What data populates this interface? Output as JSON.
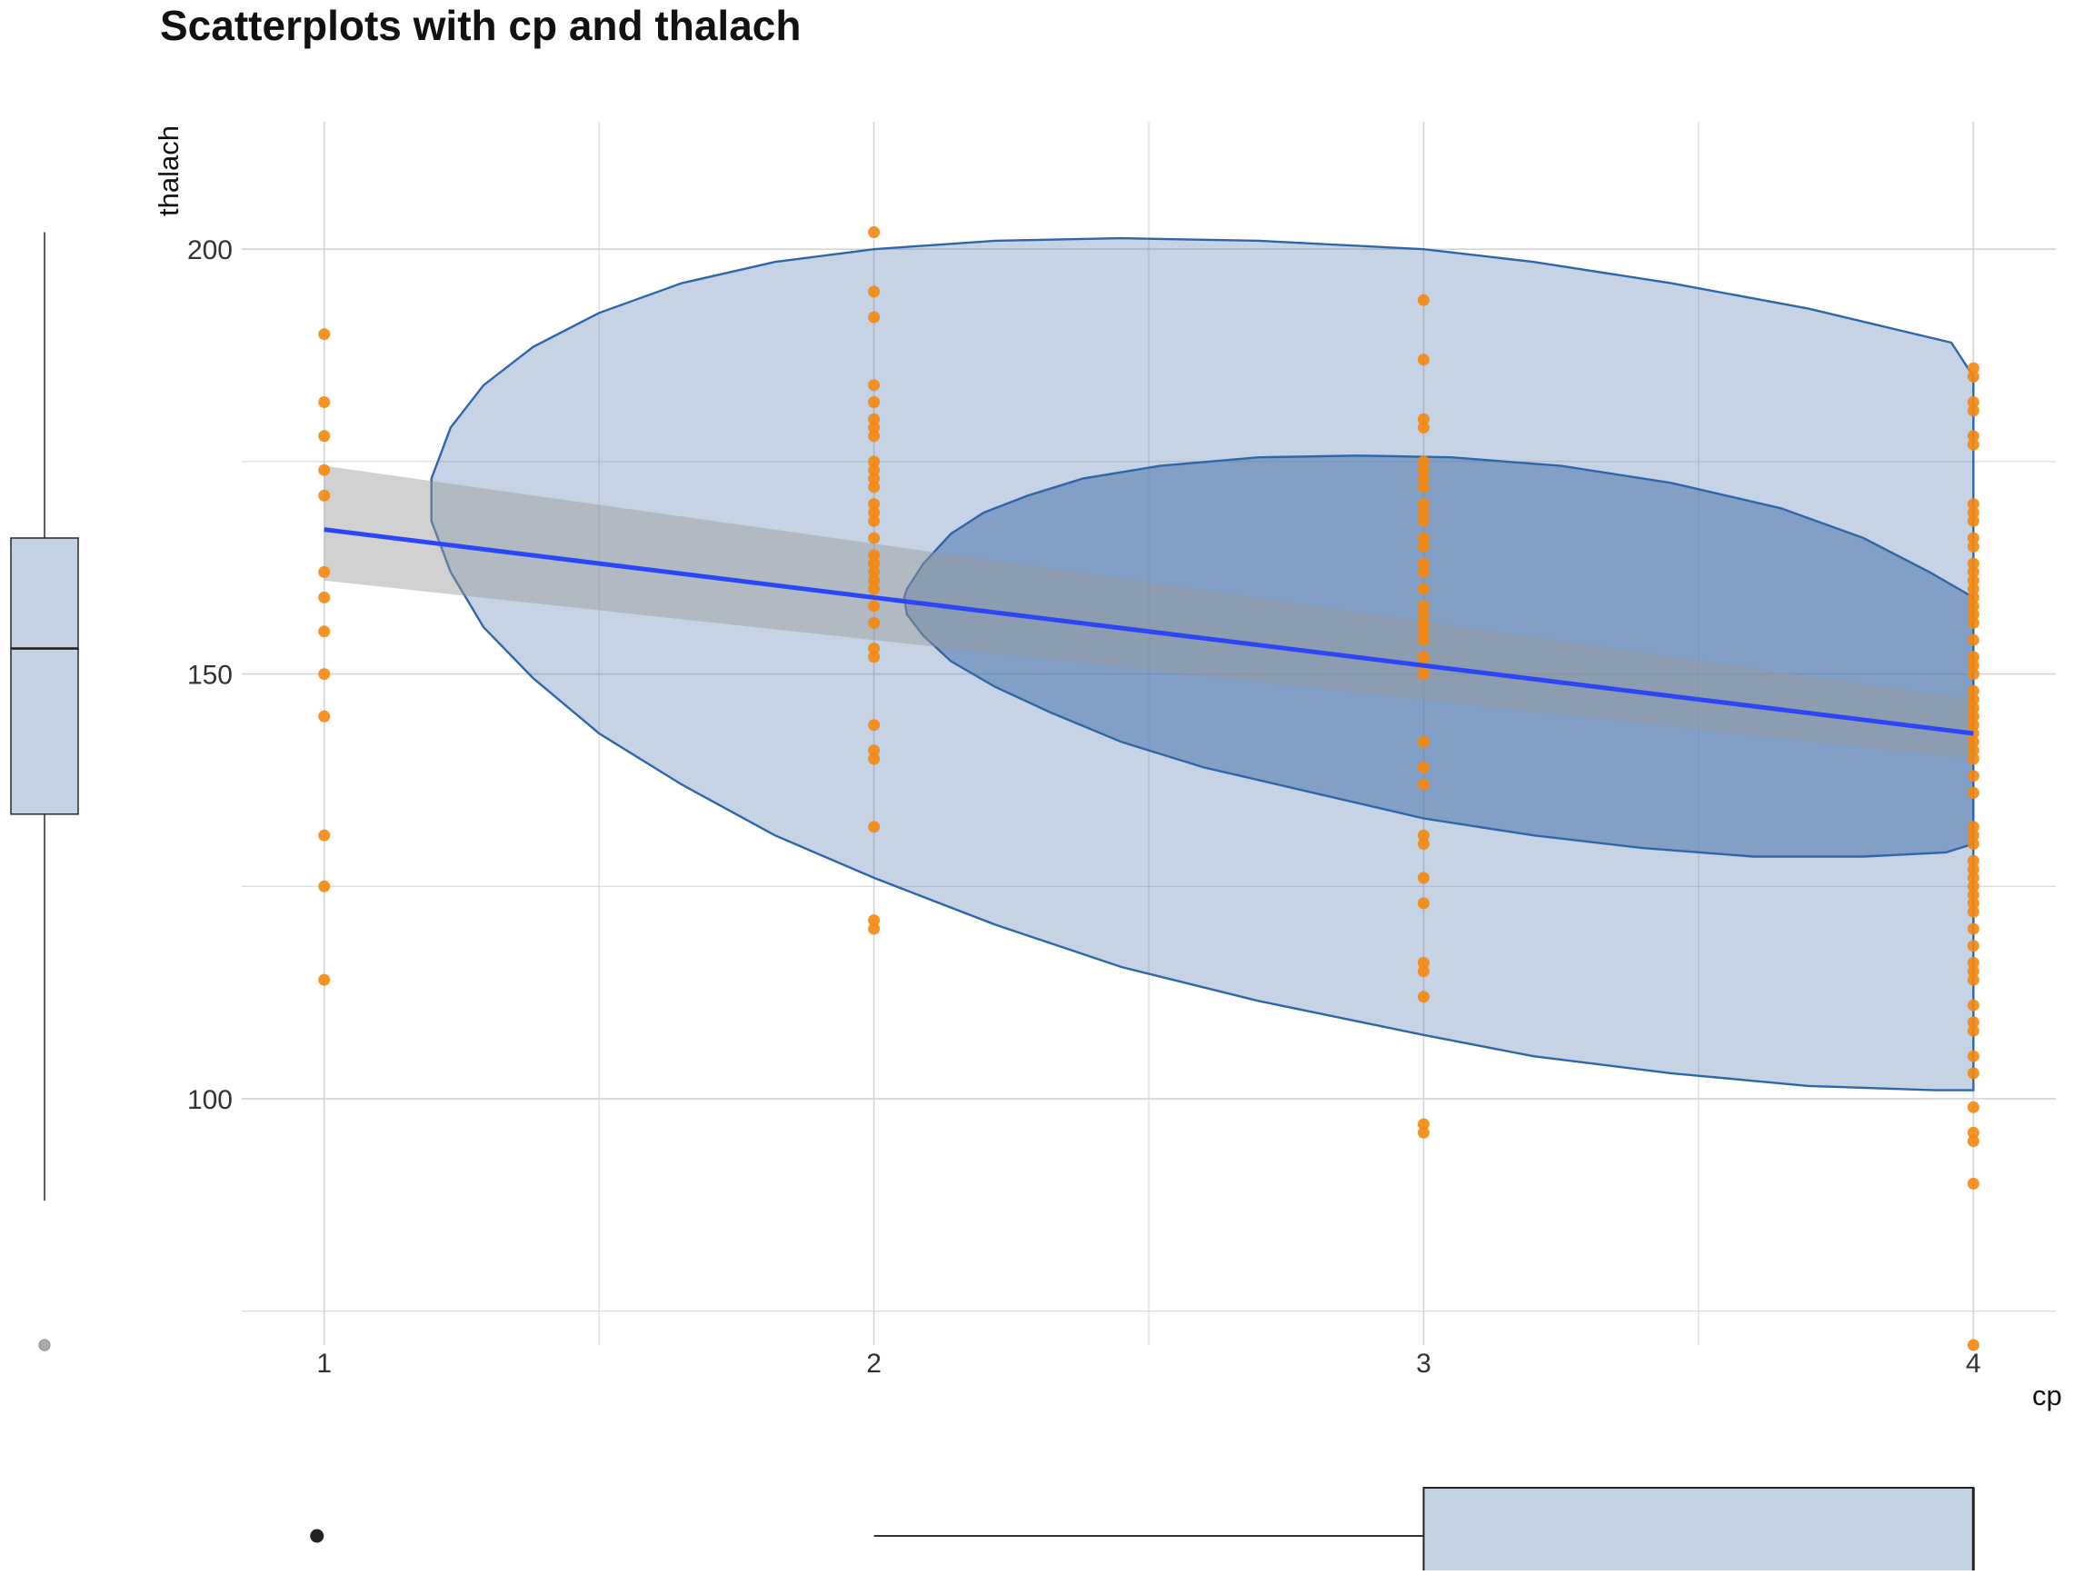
{
  "chart_data": {
    "type": "scatter",
    "title": "Scatterplots with cp and thalach",
    "xlabel": "cp",
    "ylabel": "thalach",
    "xlim": [
      0.85,
      4.15
    ],
    "ylim": [
      71,
      215
    ],
    "x_ticks": [
      1,
      2,
      3,
      4
    ],
    "x_tick_labels": [
      "1",
      "2",
      "3",
      "4"
    ],
    "y_ticks": [
      100,
      150,
      200
    ],
    "y_tick_labels": [
      "100",
      "150",
      "200"
    ],
    "grid": true,
    "colors": {
      "points": "#f5870e",
      "fit_line": "#2b47f5",
      "ci_band": "#999999",
      "density_fill": "#4b76ad",
      "density_stroke": "#2e66a8",
      "boxplot_fill": "#c4d3e4",
      "grid": "#d4d4d4"
    },
    "series": [
      {
        "type": "scatter",
        "points": [
          {
            "x": 1,
            "y": 190
          },
          {
            "x": 1,
            "y": 182
          },
          {
            "x": 1,
            "y": 178
          },
          {
            "x": 1,
            "y": 174
          },
          {
            "x": 1,
            "y": 171
          },
          {
            "x": 1,
            "y": 162
          },
          {
            "x": 1,
            "y": 159
          },
          {
            "x": 1,
            "y": 155
          },
          {
            "x": 1,
            "y": 150
          },
          {
            "x": 1,
            "y": 145
          },
          {
            "x": 1,
            "y": 131
          },
          {
            "x": 1,
            "y": 125
          },
          {
            "x": 1,
            "y": 114
          },
          {
            "x": 2,
            "y": 202
          },
          {
            "x": 2,
            "y": 195
          },
          {
            "x": 2,
            "y": 192
          },
          {
            "x": 2,
            "y": 184
          },
          {
            "x": 2,
            "y": 182
          },
          {
            "x": 2,
            "y": 180
          },
          {
            "x": 2,
            "y": 179
          },
          {
            "x": 2,
            "y": 178
          },
          {
            "x": 2,
            "y": 175
          },
          {
            "x": 2,
            "y": 174
          },
          {
            "x": 2,
            "y": 173
          },
          {
            "x": 2,
            "y": 172
          },
          {
            "x": 2,
            "y": 170
          },
          {
            "x": 2,
            "y": 169
          },
          {
            "x": 2,
            "y": 168
          },
          {
            "x": 2,
            "y": 166
          },
          {
            "x": 2,
            "y": 164
          },
          {
            "x": 2,
            "y": 163
          },
          {
            "x": 2,
            "y": 162
          },
          {
            "x": 2,
            "y": 161
          },
          {
            "x": 2,
            "y": 160
          },
          {
            "x": 2,
            "y": 158
          },
          {
            "x": 2,
            "y": 156
          },
          {
            "x": 2,
            "y": 153
          },
          {
            "x": 2,
            "y": 152
          },
          {
            "x": 2,
            "y": 144
          },
          {
            "x": 2,
            "y": 141
          },
          {
            "x": 2,
            "y": 140
          },
          {
            "x": 2,
            "y": 132
          },
          {
            "x": 2,
            "y": 121
          },
          {
            "x": 2,
            "y": 120
          },
          {
            "x": 3,
            "y": 194
          },
          {
            "x": 3,
            "y": 187
          },
          {
            "x": 3,
            "y": 180
          },
          {
            "x": 3,
            "y": 179
          },
          {
            "x": 3,
            "y": 175
          },
          {
            "x": 3,
            "y": 174
          },
          {
            "x": 3,
            "y": 173
          },
          {
            "x": 3,
            "y": 172
          },
          {
            "x": 3,
            "y": 170
          },
          {
            "x": 3,
            "y": 169
          },
          {
            "x": 3,
            "y": 168
          },
          {
            "x": 3,
            "y": 166
          },
          {
            "x": 3,
            "y": 165
          },
          {
            "x": 3,
            "y": 163
          },
          {
            "x": 3,
            "y": 162
          },
          {
            "x": 3,
            "y": 160
          },
          {
            "x": 3,
            "y": 158
          },
          {
            "x": 3,
            "y": 157
          },
          {
            "x": 3,
            "y": 156
          },
          {
            "x": 3,
            "y": 155
          },
          {
            "x": 3,
            "y": 154
          },
          {
            "x": 3,
            "y": 152
          },
          {
            "x": 3,
            "y": 151
          },
          {
            "x": 3,
            "y": 150
          },
          {
            "x": 3,
            "y": 142
          },
          {
            "x": 3,
            "y": 139
          },
          {
            "x": 3,
            "y": 137
          },
          {
            "x": 3,
            "y": 131
          },
          {
            "x": 3,
            "y": 130
          },
          {
            "x": 3,
            "y": 126
          },
          {
            "x": 3,
            "y": 123
          },
          {
            "x": 3,
            "y": 116
          },
          {
            "x": 3,
            "y": 115
          },
          {
            "x": 3,
            "y": 112
          },
          {
            "x": 3,
            "y": 97
          },
          {
            "x": 3,
            "y": 96
          },
          {
            "x": 4,
            "y": 186
          },
          {
            "x": 4,
            "y": 185
          },
          {
            "x": 4,
            "y": 182
          },
          {
            "x": 4,
            "y": 181
          },
          {
            "x": 4,
            "y": 178
          },
          {
            "x": 4,
            "y": 177
          },
          {
            "x": 4,
            "y": 170
          },
          {
            "x": 4,
            "y": 169
          },
          {
            "x": 4,
            "y": 168
          },
          {
            "x": 4,
            "y": 166
          },
          {
            "x": 4,
            "y": 165
          },
          {
            "x": 4,
            "y": 163
          },
          {
            "x": 4,
            "y": 162
          },
          {
            "x": 4,
            "y": 161
          },
          {
            "x": 4,
            "y": 160
          },
          {
            "x": 4,
            "y": 159
          },
          {
            "x": 4,
            "y": 158
          },
          {
            "x": 4,
            "y": 157
          },
          {
            "x": 4,
            "y": 156
          },
          {
            "x": 4,
            "y": 154
          },
          {
            "x": 4,
            "y": 152
          },
          {
            "x": 4,
            "y": 151
          },
          {
            "x": 4,
            "y": 150
          },
          {
            "x": 4,
            "y": 148
          },
          {
            "x": 4,
            "y": 147
          },
          {
            "x": 4,
            "y": 146
          },
          {
            "x": 4,
            "y": 145
          },
          {
            "x": 4,
            "y": 144
          },
          {
            "x": 4,
            "y": 143
          },
          {
            "x": 4,
            "y": 142
          },
          {
            "x": 4,
            "y": 141
          },
          {
            "x": 4,
            "y": 140
          },
          {
            "x": 4,
            "y": 138
          },
          {
            "x": 4,
            "y": 136
          },
          {
            "x": 4,
            "y": 132
          },
          {
            "x": 4,
            "y": 131
          },
          {
            "x": 4,
            "y": 130
          },
          {
            "x": 4,
            "y": 128
          },
          {
            "x": 4,
            "y": 127
          },
          {
            "x": 4,
            "y": 126
          },
          {
            "x": 4,
            "y": 125
          },
          {
            "x": 4,
            "y": 124
          },
          {
            "x": 4,
            "y": 123
          },
          {
            "x": 4,
            "y": 122
          },
          {
            "x": 4,
            "y": 120
          },
          {
            "x": 4,
            "y": 118
          },
          {
            "x": 4,
            "y": 116
          },
          {
            "x": 4,
            "y": 115
          },
          {
            "x": 4,
            "y": 114
          },
          {
            "x": 4,
            "y": 111
          },
          {
            "x": 4,
            "y": 109
          },
          {
            "x": 4,
            "y": 108
          },
          {
            "x": 4,
            "y": 105
          },
          {
            "x": 4,
            "y": 103
          },
          {
            "x": 4,
            "y": 99
          },
          {
            "x": 4,
            "y": 96
          },
          {
            "x": 4,
            "y": 95
          },
          {
            "x": 4,
            "y": 90
          },
          {
            "x": 4,
            "y": 71
          }
        ]
      },
      {
        "type": "line",
        "points": [
          {
            "x": 1,
            "y": 167
          },
          {
            "x": 4,
            "y": 143
          }
        ],
        "ci_band": {
          "x": [
            1,
            4
          ],
          "upper": [
            174.5,
            147
          ],
          "lower": [
            161,
            140
          ]
        }
      },
      {
        "type": "density_contour",
        "levels": [
          {
            "polygon": [
              [
                4.0,
                185
              ],
              [
                3.96,
                189
              ],
              [
                3.7,
                193
              ],
              [
                3.45,
                196
              ],
              [
                3.2,
                198.5
              ],
              [
                3.0,
                200
              ],
              [
                2.7,
                201
              ],
              [
                2.45,
                201.3
              ],
              [
                2.22,
                201
              ],
              [
                2.0,
                200
              ],
              [
                1.82,
                198.5
              ],
              [
                1.65,
                196
              ],
              [
                1.5,
                192.5
              ],
              [
                1.38,
                188.5
              ],
              [
                1.29,
                184
              ],
              [
                1.23,
                179
              ],
              [
                1.195,
                173
              ],
              [
                1.195,
                168
              ],
              [
                1.23,
                162
              ],
              [
                1.29,
                155.5
              ],
              [
                1.38,
                149.5
              ],
              [
                1.5,
                143
              ],
              [
                1.65,
                137
              ],
              [
                1.82,
                131
              ],
              [
                2.0,
                126
              ],
              [
                2.22,
                120.5
              ],
              [
                2.45,
                115.5
              ],
              [
                2.7,
                111.5
              ],
              [
                3.0,
                107.5
              ],
              [
                3.2,
                105
              ],
              [
                3.45,
                103
              ],
              [
                3.7,
                101.5
              ],
              [
                3.93,
                101
              ],
              [
                4.0,
                101
              ]
            ]
          },
          {
            "polygon": [
              [
                4.0,
                159
              ],
              [
                3.92,
                162
              ],
              [
                3.8,
                166
              ],
              [
                3.65,
                169.5
              ],
              [
                3.45,
                172.5
              ],
              [
                3.25,
                174.5
              ],
              [
                3.05,
                175.5
              ],
              [
                2.88,
                175.7
              ],
              [
                2.7,
                175.5
              ],
              [
                2.52,
                174.5
              ],
              [
                2.38,
                173
              ],
              [
                2.28,
                171
              ],
              [
                2.2,
                169
              ],
              [
                2.14,
                166.5
              ],
              [
                2.09,
                163
              ],
              [
                2.06,
                160
              ],
              [
                2.055,
                159
              ],
              [
                2.06,
                157
              ],
              [
                2.09,
                154.5
              ],
              [
                2.14,
                151.5
              ],
              [
                2.22,
                148.5
              ],
              [
                2.32,
                145.5
              ],
              [
                2.45,
                142
              ],
              [
                2.6,
                139
              ],
              [
                2.8,
                136
              ],
              [
                3.0,
                133
              ],
              [
                3.2,
                131
              ],
              [
                3.4,
                129.5
              ],
              [
                3.6,
                128.5
              ],
              [
                3.8,
                128.5
              ],
              [
                3.95,
                129
              ],
              [
                4.0,
                130
              ]
            ]
          }
        ]
      }
    ],
    "marginal_y_boxplot": {
      "q1": 133.5,
      "median": 153,
      "q3": 166,
      "whisker_low": 88,
      "whisker_high": 202,
      "outliers": [
        71
      ]
    },
    "marginal_x_boxplot": {
      "q1": 3,
      "median": 4,
      "q3": 4,
      "whisker_low": 2,
      "whisker_high": 4,
      "outliers": [
        1
      ]
    }
  }
}
